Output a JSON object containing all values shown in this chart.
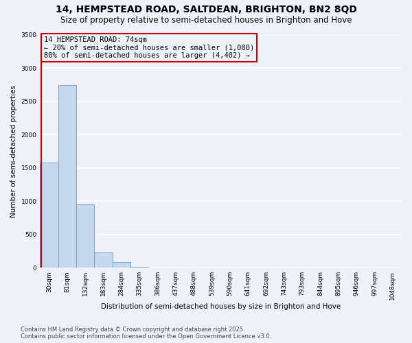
{
  "title": "14, HEMPSTEAD ROAD, SALTDEAN, BRIGHTON, BN2 8QD",
  "subtitle": "Size of property relative to semi-detached houses in Brighton and Hove",
  "xlabel": "Distribution of semi-detached houses by size in Brighton and Hove",
  "ylabel": "Number of semi-detached properties",
  "categories": [
    "30sqm",
    "81sqm",
    "132sqm",
    "183sqm",
    "284sqm",
    "335sqm",
    "386sqm",
    "437sqm",
    "488sqm",
    "539sqm",
    "590sqm",
    "641sqm",
    "692sqm",
    "743sqm",
    "793sqm",
    "844sqm",
    "895sqm",
    "946sqm",
    "997sqm",
    "1048sqm"
  ],
  "values": [
    1580,
    2750,
    950,
    225,
    80,
    15,
    2,
    0,
    0,
    0,
    0,
    0,
    0,
    0,
    0,
    0,
    0,
    0,
    0,
    0
  ],
  "bar_color": "#c5d8ee",
  "bar_edge_color": "#6699cc",
  "property_label": "14 HEMPSTEAD ROAD: 74sqm",
  "annotation_line1": "← 20% of semi-detached houses are smaller (1,080)",
  "annotation_line2": "80% of semi-detached houses are larger (4,402) →",
  "vline_color": "#cc0000",
  "vline_x_index": -0.45,
  "annotation_box_color": "#cc0000",
  "ylim": [
    0,
    3500
  ],
  "yticks": [
    0,
    500,
    1000,
    1500,
    2000,
    2500,
    3000,
    3500
  ],
  "footnote1": "Contains HM Land Registry data © Crown copyright and database right 2025.",
  "footnote2": "Contains public sector information licensed under the Open Government Licence v3.0.",
  "background_color": "#eef2f8",
  "grid_color": "#ffffff",
  "title_fontsize": 10,
  "subtitle_fontsize": 8.5,
  "axis_label_fontsize": 7.5,
  "tick_fontsize": 6.5,
  "annotation_fontsize": 7.5,
  "footnote_fontsize": 6.0
}
